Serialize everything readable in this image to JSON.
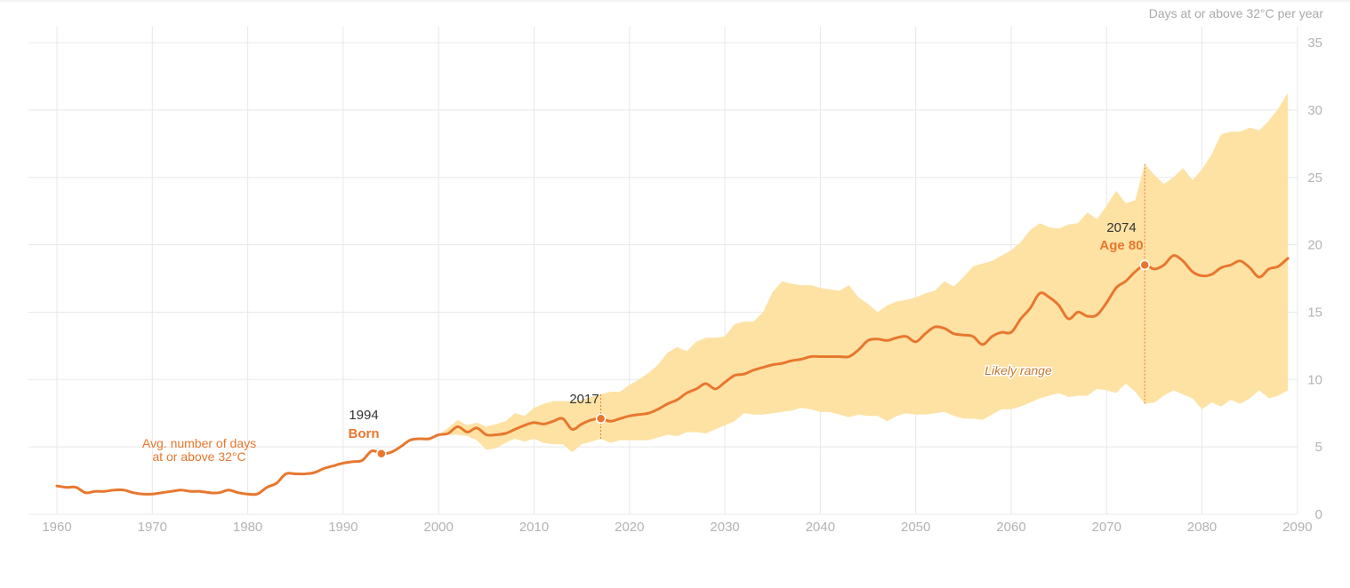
{
  "chart_data": {
    "type": "line",
    "ylabel": "Days at or above 32°C per year",
    "xlim": [
      1957,
      2090
    ],
    "ylim": [
      0,
      35
    ],
    "x_ticks": [
      1960,
      1970,
      1980,
      1990,
      2000,
      2010,
      2020,
      2030,
      2040,
      2050,
      2060,
      2070,
      2080,
      2090
    ],
    "y_ticks": [
      0,
      5,
      10,
      15,
      20,
      25,
      30,
      35
    ],
    "grid": true,
    "colors": {
      "line": "#e8772e",
      "band": "#fde2a4"
    },
    "series": [
      {
        "values_x": [
          1960,
          1961,
          1962,
          1963,
          1964,
          1965,
          1966,
          1967,
          1968,
          1969,
          1970,
          1971,
          1972,
          1973,
          1974,
          1975,
          1976,
          1977,
          1978,
          1979,
          1980,
          1981,
          1982,
          1983,
          1984,
          1985,
          1986,
          1987,
          1988,
          1989,
          1990,
          1991,
          1992,
          1993,
          1994,
          1995,
          1996,
          1997,
          1998,
          1999,
          2000,
          2001,
          2002,
          2003,
          2004,
          2005,
          2006,
          2007,
          2008,
          2009,
          2010,
          2011,
          2012,
          2013,
          2014,
          2015,
          2016,
          2017,
          2018,
          2019,
          2020,
          2021,
          2022,
          2023,
          2024,
          2025,
          2026,
          2027,
          2028,
          2029,
          2030,
          2031,
          2032,
          2033,
          2034,
          2035,
          2036,
          2037,
          2038,
          2039,
          2040,
          2041,
          2042,
          2043,
          2044,
          2045,
          2046,
          2047,
          2048,
          2049,
          2050,
          2051,
          2052,
          2053,
          2054,
          2055,
          2056,
          2057,
          2058,
          2059,
          2060,
          2061,
          2062,
          2063,
          2064,
          2065,
          2066,
          2067,
          2068,
          2069,
          2070,
          2071,
          2072,
          2073,
          2074,
          2075,
          2076,
          2077,
          2078,
          2079,
          2080,
          2081,
          2082,
          2083,
          2084,
          2085,
          2086,
          2087,
          2088,
          2089
        ],
        "values": [
          2.1,
          2.0,
          2.0,
          1.6,
          1.7,
          1.7,
          1.8,
          1.8,
          1.6,
          1.5,
          1.5,
          1.6,
          1.7,
          1.8,
          1.7,
          1.7,
          1.6,
          1.6,
          1.8,
          1.6,
          1.5,
          1.5,
          2.0,
          2.3,
          3.0,
          3.0,
          3.0,
          3.1,
          3.4,
          3.6,
          3.8,
          3.9,
          4.0,
          4.7,
          4.5,
          4.6,
          5.0,
          5.5,
          5.6,
          5.6,
          5.9,
          6.0,
          6.5,
          6.1,
          6.4,
          5.9,
          5.9,
          6.0,
          6.3,
          6.6,
          6.8,
          6.7,
          6.9,
          7.1,
          6.3,
          6.7,
          7.0,
          7.1,
          6.9,
          7.1,
          7.3,
          7.4,
          7.5,
          7.8,
          8.2,
          8.5,
          9.0,
          9.3,
          9.7,
          9.3,
          9.8,
          10.3,
          10.4,
          10.7,
          10.9,
          11.1,
          11.2,
          11.4,
          11.5,
          11.7,
          11.7,
          11.7,
          11.7,
          11.7,
          12.2,
          12.9,
          13.0,
          12.9,
          13.1,
          13.2,
          12.8,
          13.4,
          13.9,
          13.8,
          13.4,
          13.3,
          13.2,
          12.6,
          13.2,
          13.5,
          13.5,
          14.5,
          15.3,
          16.4,
          16.1,
          15.5,
          14.5,
          15.0,
          14.7,
          14.8,
          15.7,
          16.8,
          17.3,
          18.0,
          18.5,
          18.2,
          18.5,
          19.2,
          18.8,
          18.0,
          17.7,
          17.8,
          18.3,
          18.5,
          18.8,
          18.3,
          17.6,
          18.2,
          18.4,
          19.0
        ],
        "markers": [
          {
            "x": 1994,
            "y": 4.5
          },
          {
            "x": 2017,
            "y": 7.1
          },
          {
            "x": 2074,
            "y": 18.5
          }
        ]
      }
    ],
    "range_band": {
      "x": [
        2000,
        2001,
        2002,
        2003,
        2004,
        2005,
        2006,
        2007,
        2008,
        2009,
        2010,
        2011,
        2012,
        2013,
        2014,
        2015,
        2016,
        2017,
        2018,
        2019,
        2020,
        2021,
        2022,
        2023,
        2024,
        2025,
        2026,
        2027,
        2028,
        2029,
        2030,
        2031,
        2032,
        2033,
        2034,
        2035,
        2036,
        2037,
        2038,
        2039,
        2040,
        2041,
        2042,
        2043,
        2044,
        2045,
        2046,
        2047,
        2048,
        2049,
        2050,
        2051,
        2052,
        2053,
        2054,
        2055,
        2056,
        2057,
        2058,
        2059,
        2060,
        2061,
        2062,
        2063,
        2064,
        2065,
        2066,
        2067,
        2068,
        2069,
        2070,
        2071,
        2072,
        2073,
        2074,
        2075,
        2076,
        2077,
        2078,
        2079,
        2080,
        2081,
        2082,
        2083,
        2084,
        2085,
        2086,
        2087,
        2088,
        2089
      ],
      "low": [
        5.9,
        5.9,
        5.9,
        5.8,
        5.5,
        4.8,
        4.9,
        5.3,
        5.6,
        5.4,
        5.6,
        5.3,
        5.2,
        5.2,
        4.6,
        5.2,
        5.4,
        5.6,
        5.3,
        5.5,
        5.5,
        5.5,
        5.5,
        5.7,
        5.9,
        5.8,
        6.1,
        6.1,
        6.0,
        6.3,
        6.6,
        6.9,
        7.5,
        7.4,
        7.4,
        7.5,
        7.6,
        7.7,
        7.9,
        7.8,
        7.6,
        7.6,
        7.4,
        7.2,
        7.4,
        7.3,
        7.3,
        6.9,
        7.3,
        7.5,
        7.4,
        7.4,
        7.5,
        7.6,
        7.3,
        7.1,
        7.1,
        7.0,
        7.4,
        7.8,
        7.8,
        8.0,
        8.3,
        8.6,
        8.8,
        9.0,
        8.7,
        8.8,
        8.8,
        9.3,
        9.2,
        9.0,
        9.7,
        9.1,
        8.2,
        8.3,
        8.8,
        9.2,
        8.9,
        8.6,
        7.8,
        8.3,
        8.0,
        8.5,
        8.2,
        8.6,
        9.2,
        8.6,
        8.8,
        9.2
      ],
      "high": [
        5.9,
        6.4,
        7.0,
        6.6,
        6.8,
        6.5,
        6.7,
        6.9,
        7.5,
        7.3,
        7.9,
        8.2,
        8.4,
        8.4,
        8.4,
        8.5,
        8.7,
        8.9,
        9.1,
        9.1,
        9.6,
        10.0,
        10.5,
        11.1,
        12.0,
        12.4,
        12.1,
        12.8,
        13.1,
        13.1,
        13.2,
        14.1,
        14.3,
        14.3,
        15.0,
        16.5,
        17.3,
        17.1,
        17.0,
        17.0,
        16.8,
        16.7,
        16.6,
        17.0,
        16.1,
        15.6,
        15.0,
        15.5,
        15.8,
        15.9,
        16.1,
        16.4,
        16.6,
        17.3,
        16.9,
        17.6,
        18.4,
        18.6,
        18.8,
        19.2,
        19.6,
        20.2,
        21.1,
        21.6,
        21.3,
        21.2,
        21.5,
        21.6,
        22.4,
        21.9,
        22.9,
        24.0,
        23.1,
        23.3,
        26.0,
        25.2,
        24.5,
        25.0,
        25.7,
        24.8,
        25.6,
        26.7,
        28.2,
        28.4,
        28.4,
        28.7,
        28.5,
        29.2,
        30.1,
        31.3
      ]
    },
    "annotations": {
      "born_year": "1994",
      "born_label": "Born",
      "now_year": "2017",
      "age_year": "2074",
      "age_label": "Age 80",
      "avg_note_line1": "Avg. number of days",
      "avg_note_line2": "at or above 32°C",
      "range_label": "Likely range"
    }
  }
}
